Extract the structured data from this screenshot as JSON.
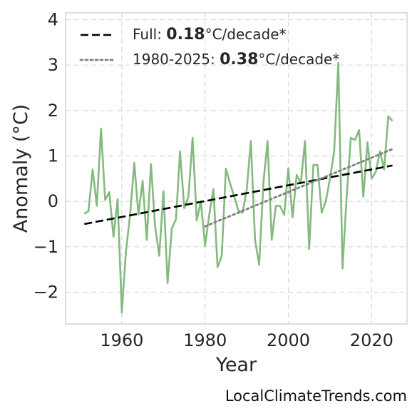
{
  "chart_data": {
    "type": "line",
    "xlabel": "Year",
    "ylabel": "Anomaly (°C)",
    "xlim": [
      1946.5,
      2028.5
    ],
    "ylim": [
      -2.7,
      4.15
    ],
    "x_ticks": [
      1960,
      1980,
      2000,
      2020
    ],
    "x_tick_labels": [
      "1960",
      "1980",
      "2000",
      "2020"
    ],
    "y_ticks": [
      -2,
      -1,
      0,
      1,
      2,
      3,
      4
    ],
    "y_tick_labels": [
      "−2",
      "−1",
      "0",
      "1",
      "2",
      "3",
      "4"
    ],
    "grid": true,
    "legend_position": "top-left",
    "series": [
      {
        "name": "",
        "style": "solid",
        "color": "#84b97f",
        "x": [
          1951,
          1952,
          1953,
          1954,
          1955,
          1956,
          1957,
          1958,
          1959,
          1960,
          1961,
          1962,
          1963,
          1964,
          1965,
          1966,
          1967,
          1968,
          1969,
          1970,
          1971,
          1972,
          1973,
          1974,
          1975,
          1976,
          1977,
          1978,
          1979,
          1980,
          1981,
          1982,
          1983,
          1984,
          1985,
          1986,
          1987,
          1988,
          1989,
          1990,
          1991,
          1992,
          1993,
          1994,
          1995,
          1996,
          1997,
          1998,
          1999,
          2000,
          2001,
          2002,
          2003,
          2004,
          2005,
          2006,
          2007,
          2008,
          2009,
          2010,
          2011,
          2012,
          2013,
          2014,
          2015,
          2016,
          2017,
          2018,
          2019,
          2020,
          2021,
          2022,
          2023,
          2024,
          2025
        ],
        "y": [
          -0.27,
          -0.22,
          0.7,
          -0.1,
          1.6,
          0.03,
          0.2,
          -0.78,
          0.05,
          -2.45,
          -1.1,
          -0.3,
          0.85,
          -0.3,
          0.45,
          -0.85,
          0.82,
          -0.55,
          -1.2,
          0.22,
          -1.8,
          -0.6,
          -0.4,
          1.1,
          -0.15,
          0.1,
          1.4,
          -0.42,
          0.0,
          -0.98,
          -0.3,
          0.27,
          -1.45,
          -1.2,
          0.72,
          0.4,
          0.1,
          -0.2,
          -0.25,
          0.25,
          1.33,
          -0.85,
          -1.4,
          0.4,
          1.33,
          -0.85,
          -0.1,
          -0.1,
          -0.3,
          0.73,
          -0.35,
          0.58,
          0.4,
          1.33,
          -1.05,
          0.8,
          0.8,
          -0.25,
          0.0,
          0.5,
          1.1,
          3.05,
          -1.48,
          0.1,
          1.4,
          1.35,
          1.57,
          0.1,
          1.3,
          0.5,
          0.65,
          1.1,
          0.7,
          1.87,
          1.77
        ]
      },
      {
        "name": "Full",
        "style": "dashed",
        "color": "#000000",
        "x": [
          1951,
          2025
        ],
        "y": [
          -0.5,
          0.79
        ]
      },
      {
        "name": "1980-2025",
        "style": "dotted",
        "color": "#7f7f7f",
        "x": [
          1980,
          2025
        ],
        "y": [
          -0.55,
          1.15
        ]
      }
    ],
    "legend": [
      {
        "prefix": "Full: ",
        "value": "0.18",
        "suffix": "°C/decade*",
        "style": "dashed",
        "color": "#000000"
      },
      {
        "prefix": "1980-2025: ",
        "value": "0.38",
        "suffix": "°C/decade*",
        "style": "dotted",
        "color": "#7f7f7f"
      }
    ]
  },
  "source_credit": "LocalClimateTrends.com"
}
